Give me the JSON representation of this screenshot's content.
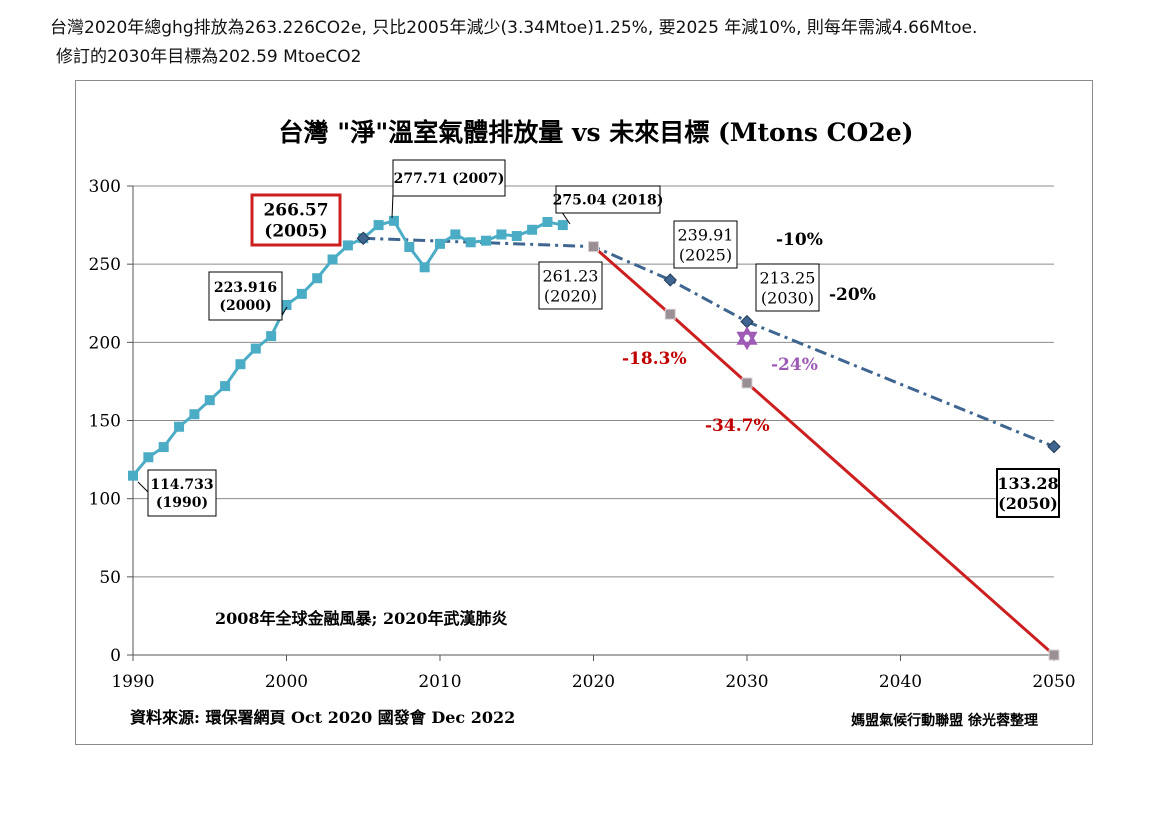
{
  "header": {
    "line1": "台灣2020年總ghg排放為263.226CO2e, 只比2005年減少(3.34Mtoe)1.25%, 要2025 年減10%, 則每年需減4.66Mtoe.",
    "line2": "修訂的2030年目標為202.59 MtoeCO2"
  },
  "chart_data": {
    "type": "line",
    "title": "台灣 \"淨\"溫室氣體排放量 vs 未來目標 (Mtons CO2e)",
    "xlim": [
      1990,
      2050
    ],
    "ylim": [
      0,
      300
    ],
    "x_ticks": [
      "1990",
      "2000",
      "2010",
      "2020",
      "2030",
      "2040",
      "2050"
    ],
    "y_ticks": [
      "0",
      "50",
      "100",
      "150",
      "200",
      "250",
      "300"
    ],
    "grid": "horizontal",
    "colors": {
      "historical": "#4bacc6",
      "target": "#3f6690",
      "red_path": "#cc1f1f",
      "percent_red": "#c00000",
      "percent_purple": "#9e5bb5",
      "grey_marker": "#9a8f95"
    },
    "series": [
      {
        "key": "historical",
        "x": [
          1990,
          1991,
          1992,
          1993,
          1994,
          1995,
          1996,
          1997,
          1998,
          1999,
          2000,
          2001,
          2002,
          2003,
          2004,
          2005,
          2006,
          2007,
          2008,
          2009,
          2010,
          2011,
          2012,
          2013,
          2014,
          2015,
          2016,
          2017,
          2018
        ],
        "values": [
          114.7,
          126.5,
          133,
          146,
          154,
          163,
          172,
          186,
          196,
          204,
          223.9,
          231,
          241,
          253,
          262,
          266.6,
          275,
          277.7,
          261,
          248,
          263,
          269,
          264,
          265,
          269,
          268,
          272,
          277,
          275
        ]
      },
      {
        "key": "target",
        "x": [
          2005,
          2020,
          2025,
          2030,
          2050
        ],
        "values": [
          266.57,
          261.23,
          239.91,
          213.25,
          133.28
        ],
        "markers_at": [
          2005,
          2025,
          2030,
          2050
        ]
      },
      {
        "key": "red_path",
        "x": [
          2020,
          2025,
          2030,
          2050
        ],
        "values": [
          261.23,
          218,
          174,
          0
        ]
      }
    ],
    "highlight_point": {
      "x": 2030,
      "y": 202.59
    },
    "annotations": [
      {
        "text": "114.733\n(1990)",
        "x": 1990,
        "y": 114.733
      },
      {
        "text": "223.916\n(2000)",
        "x": 2000,
        "y": 223.916
      },
      {
        "text": "266.57\n(2005)",
        "x": 2005,
        "y": 266.57
      },
      {
        "text": "277.71 (2007)",
        "x": 2007,
        "y": 277.71
      },
      {
        "text": "275.04 (2018)",
        "x": 2018,
        "y": 275.04
      },
      {
        "text": "261.23\n(2020)",
        "x": 2020,
        "y": 261.23
      },
      {
        "text": "239.91\n(2025)",
        "x": 2025,
        "y": 239.91
      },
      {
        "text": "213.25\n(2030)",
        "x": 2030,
        "y": 213.25
      },
      {
        "text": "133.28\n(2050)",
        "x": 2050,
        "y": 133.28
      }
    ],
    "percent_labels": {
      "p10": "-10%",
      "p20": "-20%",
      "p18": "-18.3%",
      "p347": "-34.7%",
      "p24": "-24%"
    },
    "notes": {
      "events": "2008年全球金融風暴; 2020年武漢肺炎",
      "source": "資料來源: 環保署網頁 Oct 2020  國發會 Dec 2022",
      "credit": "媽盟氣候行動聯盟 徐光蓉整理"
    }
  }
}
